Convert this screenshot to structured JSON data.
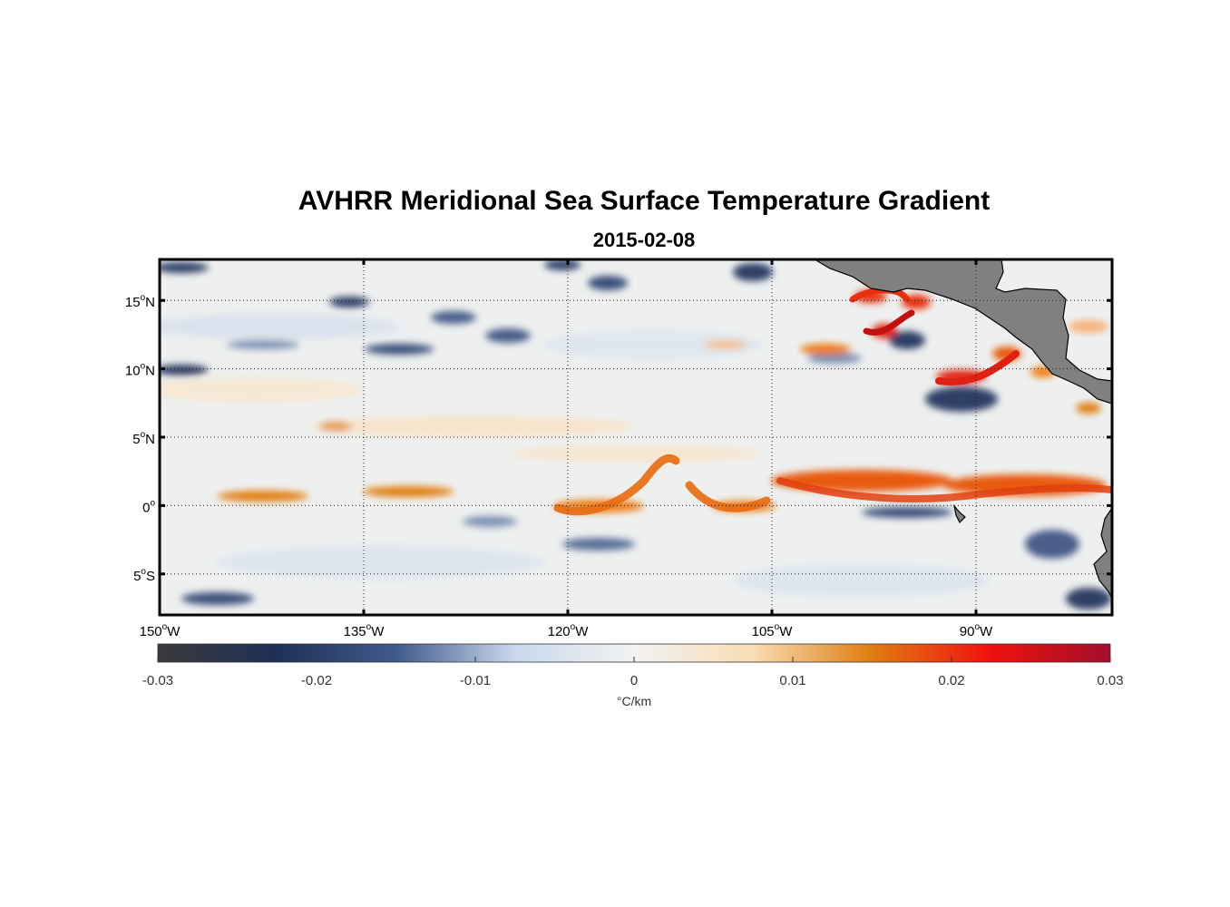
{
  "title": "AVHRR Meridional Sea Surface Temperature Gradient",
  "subtitle": "2015-02-08",
  "map": {
    "type": "heatmap",
    "lon_range": [
      -150,
      -80
    ],
    "lat_range": [
      -8,
      18
    ],
    "grid": "dotted",
    "lat_ticks": [
      {
        "value": 15,
        "num": "15",
        "hemi": "N"
      },
      {
        "value": 10,
        "num": "10",
        "hemi": "N"
      },
      {
        "value": 5,
        "num": "5",
        "hemi": "N"
      },
      {
        "value": 0,
        "num": "0",
        "hemi": ""
      },
      {
        "value": -5,
        "num": "5",
        "hemi": "S"
      }
    ],
    "lon_ticks": [
      {
        "value": -150,
        "num": "150",
        "hemi": "W"
      },
      {
        "value": -135,
        "num": "135",
        "hemi": "W"
      },
      {
        "value": -120,
        "num": "120",
        "hemi": "W"
      },
      {
        "value": -105,
        "num": "105",
        "hemi": "W"
      },
      {
        "value": -90,
        "num": "90",
        "hemi": "W"
      }
    ],
    "degree_symbol": "o",
    "land_color": "#808080"
  },
  "colorbar": {
    "min": -0.03,
    "max": 0.03,
    "ticks": [
      {
        "value": -0.03,
        "label": "-0.03"
      },
      {
        "value": -0.02,
        "label": "-0.02"
      },
      {
        "value": -0.01,
        "label": "-0.01"
      },
      {
        "value": 0,
        "label": "0"
      },
      {
        "value": 0.01,
        "label": "0.01"
      },
      {
        "value": 0.02,
        "label": "0.02"
      },
      {
        "value": 0.03,
        "label": "0.03"
      }
    ],
    "label": "°C/km",
    "colors": [
      "#3a3a3a",
      "#1e2f55",
      "#3f5a8c",
      "#c9d8ec",
      "#f2f2f2",
      "#f8dcb4",
      "#e07d10",
      "#f01010",
      "#a0102a"
    ]
  }
}
